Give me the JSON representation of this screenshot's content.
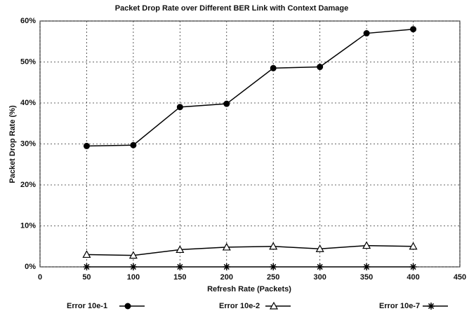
{
  "chart_data": {
    "type": "line",
    "title": "Packet Drop Rate  over Different BER Link with Context Damage",
    "xlabel": "Refresh Rate (Packets)",
    "ylabel": "Packet Drop Rate (%)",
    "x": [
      50,
      100,
      150,
      200,
      250,
      300,
      350,
      400
    ],
    "series": [
      {
        "name": "Error 10e-1",
        "color": "#000000",
        "marker": "circle",
        "values": [
          29.5,
          29.7,
          39,
          39.8,
          48.5,
          48.8,
          57,
          58
        ]
      },
      {
        "name": "Error 10e-2",
        "color": "#000000",
        "marker": "triangle",
        "values": [
          3,
          2.8,
          4.2,
          4.8,
          5,
          4.4,
          5.2,
          5
        ]
      },
      {
        "name": "Error 10e-7",
        "color": "#000000",
        "marker": "star",
        "values": [
          0,
          0,
          0,
          0,
          0,
          0,
          0,
          0
        ]
      }
    ],
    "xlim": [
      0,
      450
    ],
    "xticks": [
      0,
      50,
      100,
      150,
      200,
      250,
      300,
      350,
      400,
      450
    ],
    "ylim": [
      0,
      60
    ],
    "yticks": [
      {
        "value": 0,
        "label": "0%"
      },
      {
        "value": 10,
        "label": "10%"
      },
      {
        "value": 20,
        "label": "20%"
      },
      {
        "value": 30,
        "label": "30%"
      },
      {
        "value": 40,
        "label": "40%"
      },
      {
        "value": 50,
        "label": "50%"
      },
      {
        "value": 60,
        "label": "60%"
      }
    ],
    "grid": true,
    "legend": "bottom"
  }
}
